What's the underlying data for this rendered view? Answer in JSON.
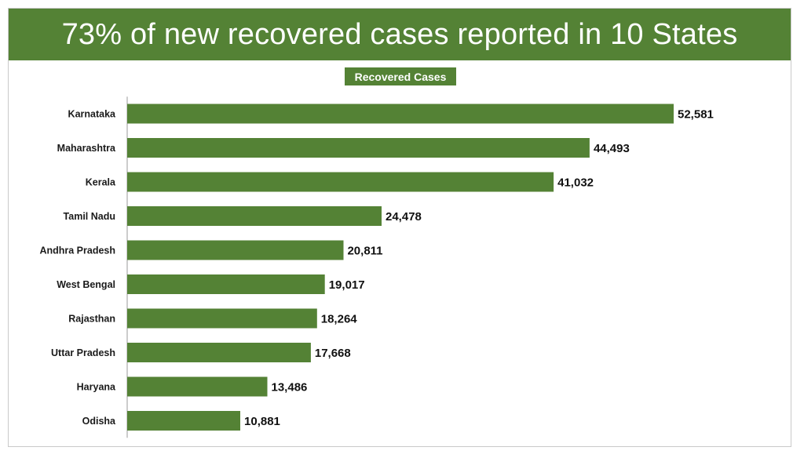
{
  "title": "73% of new recovered cases reported in 10 States",
  "legend_label": "Recovered Cases",
  "colors": {
    "bar": "#548235",
    "title_bg": "#548235",
    "title_text": "#ffffff"
  },
  "chart_data": {
    "type": "bar",
    "orientation": "horizontal",
    "title": "73% of new recovered cases reported in 10 States",
    "categories": [
      "Karnataka",
      "Maharashtra",
      "Kerala",
      "Tamil Nadu",
      "Andhra Pradesh",
      "West Bengal",
      "Rajasthan",
      "Uttar Pradesh",
      "Haryana",
      "Odisha"
    ],
    "series": [
      {
        "name": "Recovered Cases",
        "values": [
          52581,
          44493,
          41032,
          24478,
          20811,
          19017,
          18264,
          17668,
          13486,
          10881
        ]
      }
    ],
    "value_labels": [
      "52,581",
      "44,493",
      "41,032",
      "24,478",
      "20,811",
      "19,017",
      "18,264",
      "17,668",
      "13,486",
      "10,881"
    ],
    "xlim": [
      0,
      52581
    ],
    "grid": false,
    "legend_position": "top-center"
  }
}
